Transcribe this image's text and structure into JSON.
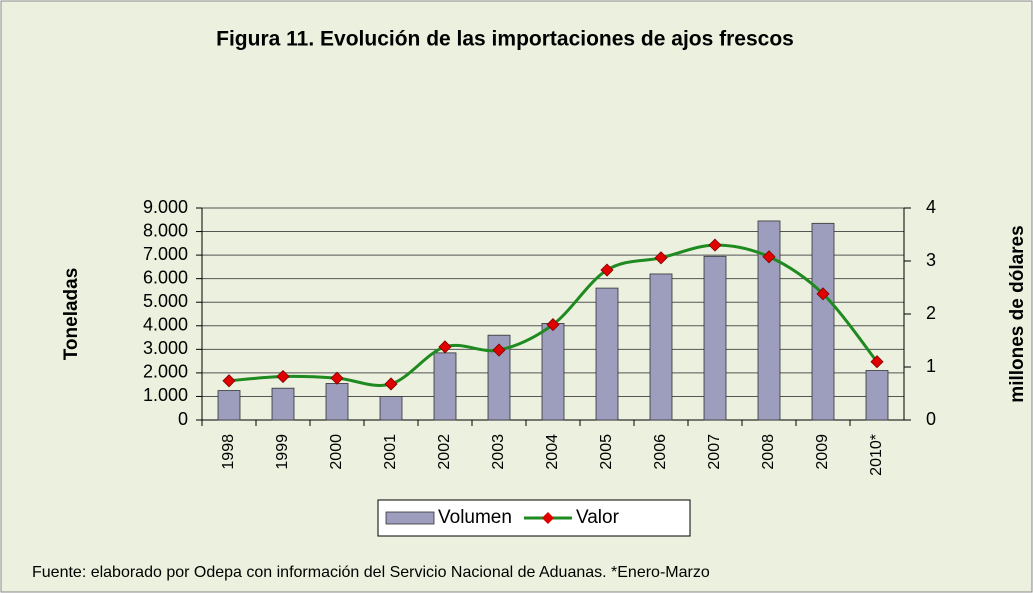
{
  "chart_data": {
    "type": "bar-line",
    "title": "Figura 11. Evolución de las importaciones de ajos frescos",
    "ylabel": "Toneladas",
    "y2label": "millones de dólares",
    "categories": [
      "1998",
      "1999",
      "2000",
      "2001",
      "2002",
      "2003",
      "2004",
      "2005",
      "2006",
      "2007",
      "2008",
      "2009",
      "2010*"
    ],
    "series": [
      {
        "name": "Volumen",
        "type": "bar",
        "color": "#9d9dbd",
        "values": [
          1250,
          1350,
          1550,
          1000,
          2850,
          3600,
          4100,
          5600,
          6200,
          6950,
          8450,
          8350,
          2100
        ]
      },
      {
        "name": "Valor",
        "type": "line",
        "axis": "y2",
        "color": "#1f8a1f",
        "marker_color": "#e00000",
        "values": [
          0.74,
          0.82,
          0.79,
          0.68,
          1.38,
          1.32,
          1.8,
          2.83,
          3.06,
          3.3,
          3.08,
          2.38,
          1.1
        ]
      }
    ],
    "ylim": [
      0,
      9000
    ],
    "yticks": [
      0,
      {
        "value": 1000,
        "label": "1.000"
      },
      {
        "value": 2000,
        "label": "2.000"
      },
      {
        "value": 3000,
        "label": "3.000"
      },
      {
        "value": 4000,
        "label": "4.000"
      },
      {
        "value": 5000,
        "label": "5.000"
      },
      {
        "value": 6000,
        "label": "6.000"
      },
      {
        "value": 7000,
        "label": "7.000"
      },
      {
        "value": 8000,
        "label": "8.000"
      },
      {
        "value": 9000,
        "label": "9.000"
      }
    ],
    "y2lim": [
      0,
      4
    ],
    "y2ticks": [
      0,
      1,
      2,
      3,
      4
    ],
    "grid": true,
    "legend": "bottom",
    "source": "Fuente: elaborado por Odepa con información del Servicio Nacional de Aduanas. *Enero-Marzo"
  }
}
